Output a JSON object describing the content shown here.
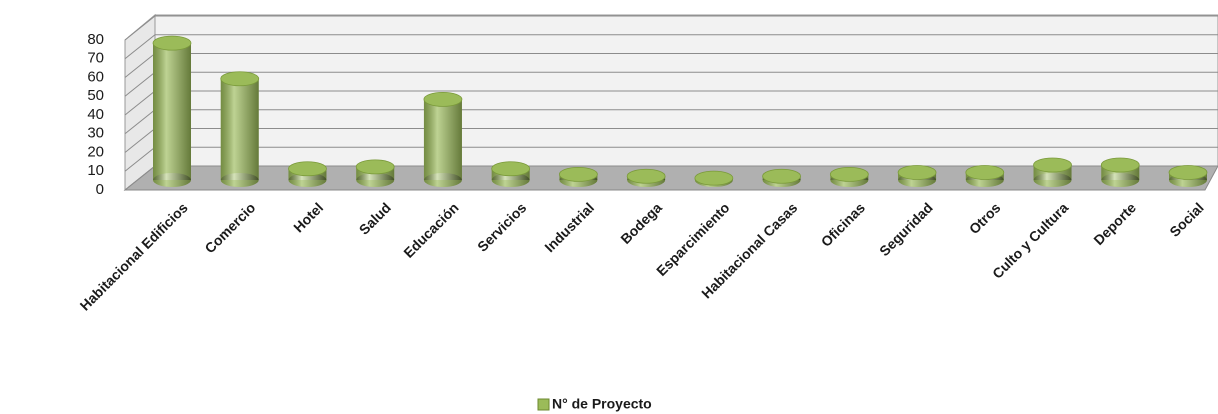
{
  "chart_data": {
    "type": "bar",
    "categories": [
      "Habitacional Edificios",
      "Comercio",
      "Hotel",
      "Salud",
      "Educación",
      "Servicios",
      "Industrial",
      "Bodega",
      "Esparcimiento",
      "Habitacional Casas",
      "Oficinas",
      "Seguridad",
      "Otros",
      "Culto y Cultura",
      "Deporte",
      "Social"
    ],
    "series": [
      {
        "name": "N° de Proyecto",
        "color": "#9bbb59",
        "values": [
          73,
          54,
          6,
          7,
          43,
          6,
          3,
          2,
          1,
          2,
          3,
          4,
          4,
          8,
          8,
          4
        ]
      }
    ],
    "ylim": [
      0,
      80
    ],
    "yticks": [
      0,
      10,
      20,
      30,
      40,
      50,
      60,
      70,
      80
    ],
    "grid": true,
    "legend": "bottom"
  }
}
